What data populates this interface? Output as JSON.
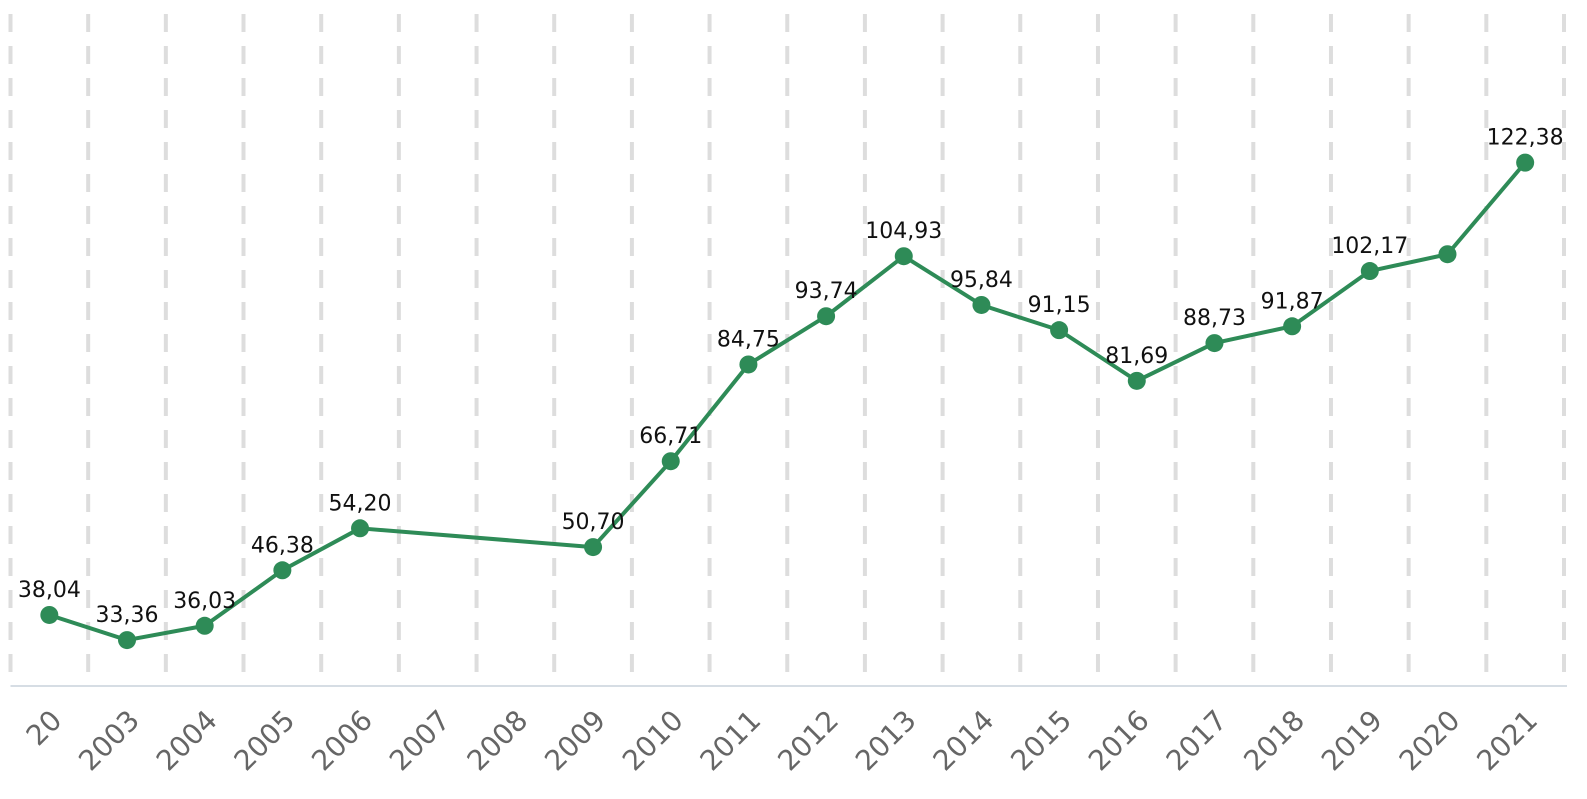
{
  "chart_data": {
    "type": "line",
    "categories": [
      "20",
      "2003",
      "2004",
      "2005",
      "2006",
      "2007",
      "2008",
      "2009",
      "2010",
      "2011",
      "2012",
      "2013",
      "2014",
      "2015",
      "2016",
      "2017",
      "2018",
      "2019",
      "2020",
      "2021"
    ],
    "series": [
      {
        "color": "#2e8b57",
        "values": [
          38.04,
          33.36,
          36.03,
          46.38,
          54.2,
          null,
          null,
          50.7,
          66.71,
          84.75,
          93.74,
          104.93,
          95.84,
          91.15,
          81.69,
          88.73,
          91.87,
          102.17,
          105.3,
          122.38
        ],
        "value_labels": [
          "38,04",
          "33,36",
          "36,03",
          "46,38",
          "54,20",
          null,
          null,
          "50,70",
          "66,71",
          "84,75",
          "93,74",
          "104,93",
          "95,84",
          "91,15",
          "81,69",
          "88,73",
          "91,87",
          "102,17",
          null,
          "122,38"
        ]
      }
    ],
    "ylim": [
      24.8,
      152.7
    ],
    "connect_nulls": true,
    "grid": true
  }
}
